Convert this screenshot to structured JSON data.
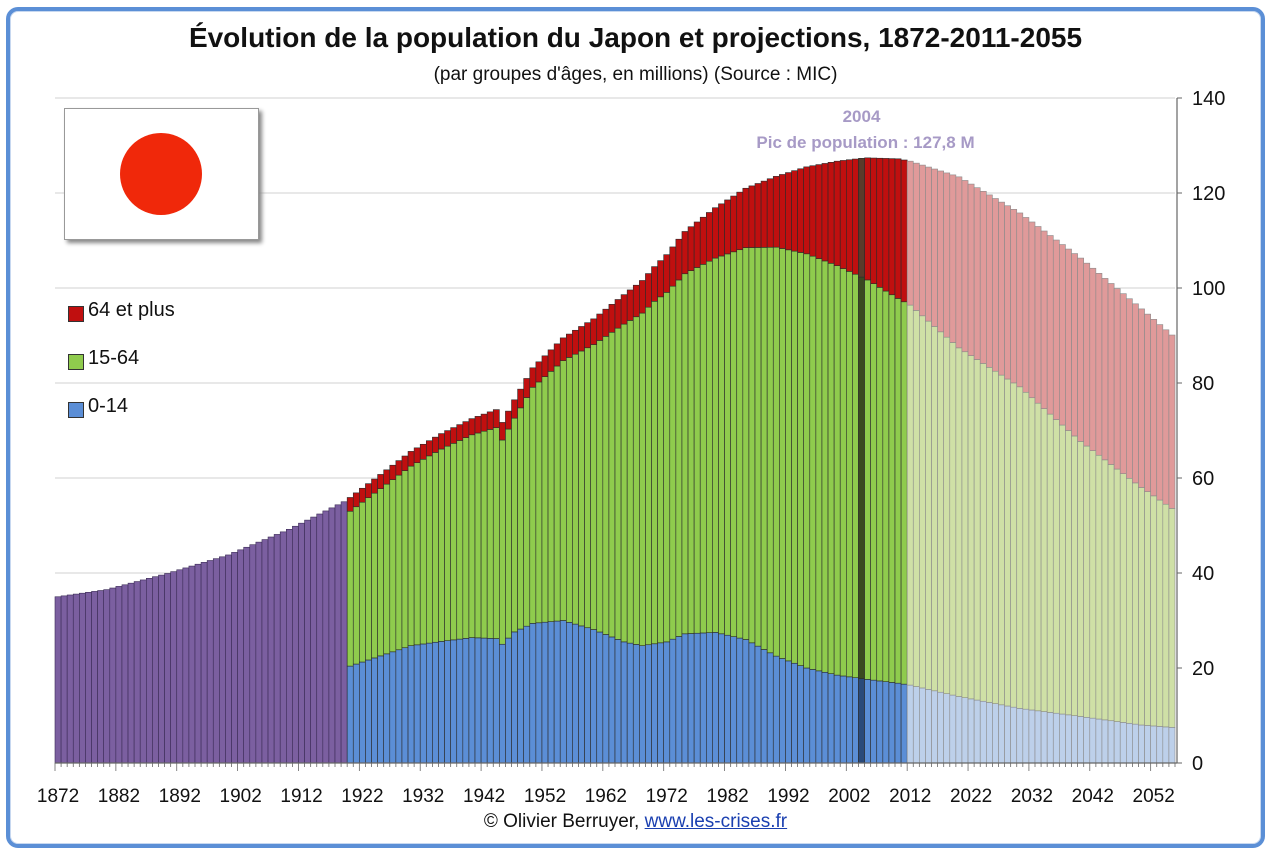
{
  "title": "Évolution de la population du Japon et projections, 1872-2011-2055",
  "subtitle": "(par groupes d'âges, en millions) (Source : MIC)",
  "footer": {
    "copyright": "© Olivier Berruyer,",
    "link": "www.les-crises.fr"
  },
  "annotation": {
    "year": "2004",
    "text": "Pic de population  :  127,8 M"
  },
  "flag_icon": "japan-flag-icon",
  "colors": {
    "total_pre1920": "#7b5fa0",
    "age_0_14": "#5b8ed6",
    "age_15_64": "#8fcb4d",
    "age_65_plus": "#c00f0f",
    "proj_0_14": "#bdd0ea",
    "proj_15_64": "#cfe0a6",
    "proj_65_plus": "#e09a9a",
    "peak_bar": "#5a3a2a",
    "frame": "#5b8fd6"
  },
  "chart_data": {
    "type": "bar",
    "stacked": true,
    "x_start": 1872,
    "x_end": 2055,
    "projection_start": 2012,
    "highlight_year": 2004,
    "x_ticks": [
      1872,
      1882,
      1892,
      1902,
      1912,
      1922,
      1932,
      1942,
      1952,
      1962,
      1972,
      1982,
      1992,
      2002,
      2012,
      2022,
      2032,
      2042,
      2052
    ],
    "y_ticks": [
      0,
      20,
      40,
      60,
      80,
      100,
      120,
      140
    ],
    "ylim": [
      0,
      140
    ],
    "y_axis_side": "right",
    "legend_position": "left",
    "series": [
      {
        "name": "64 et plus",
        "key": "age_65_plus"
      },
      {
        "name": "15-64",
        "key": "age_15_64"
      },
      {
        "name": "0-14",
        "key": "age_0_14"
      }
    ],
    "total_keypoints": [
      [
        1872,
        35.0
      ],
      [
        1880,
        36.5
      ],
      [
        1890,
        39.9
      ],
      [
        1900,
        43.8
      ],
      [
        1910,
        49.2
      ],
      [
        1919,
        55.0
      ]
    ],
    "age_0_14_keypoints": [
      [
        1920,
        20.4
      ],
      [
        1930,
        24.7
      ],
      [
        1935,
        25.6
      ],
      [
        1940,
        26.4
      ],
      [
        1944,
        26.2
      ],
      [
        1945,
        25.0
      ],
      [
        1947,
        27.6
      ],
      [
        1950,
        29.4
      ],
      [
        1955,
        30.0
      ],
      [
        1960,
        28.1
      ],
      [
        1965,
        25.5
      ],
      [
        1968,
        24.7
      ],
      [
        1972,
        25.5
      ],
      [
        1975,
        27.2
      ],
      [
        1980,
        27.5
      ],
      [
        1985,
        26.0
      ],
      [
        1990,
        22.5
      ],
      [
        1995,
        20.0
      ],
      [
        2000,
        18.5
      ],
      [
        2005,
        17.6
      ],
      [
        2010,
        16.8
      ],
      [
        2012,
        16.4
      ],
      [
        2020,
        14.0
      ],
      [
        2030,
        11.5
      ],
      [
        2040,
        9.8
      ],
      [
        2050,
        8.0
      ],
      [
        2055,
        7.5
      ]
    ],
    "age_15_64_keypoints": [
      [
        1920,
        32.6
      ],
      [
        1930,
        37.8
      ],
      [
        1935,
        40.5
      ],
      [
        1940,
        42.7
      ],
      [
        1944,
        44.4
      ],
      [
        1945,
        43.0
      ],
      [
        1947,
        45.0
      ],
      [
        1950,
        49.7
      ],
      [
        1955,
        54.7
      ],
      [
        1960,
        60.0
      ],
      [
        1965,
        66.9
      ],
      [
        1970,
        72.1
      ],
      [
        1975,
        75.8
      ],
      [
        1980,
        78.8
      ],
      [
        1985,
        82.5
      ],
      [
        1990,
        86.1
      ],
      [
        1995,
        87.2
      ],
      [
        2000,
        86.2
      ],
      [
        2005,
        84.1
      ],
      [
        2010,
        81.0
      ],
      [
        2012,
        80.0
      ],
      [
        2020,
        73.4
      ],
      [
        2030,
        67.7
      ],
      [
        2040,
        57.9
      ],
      [
        2050,
        50.0
      ],
      [
        2055,
        46.1
      ]
    ],
    "age_65_plus_keypoints": [
      [
        1920,
        2.9
      ],
      [
        1930,
        3.1
      ],
      [
        1940,
        3.4
      ],
      [
        1944,
        3.8
      ],
      [
        1945,
        3.7
      ],
      [
        1950,
        4.1
      ],
      [
        1955,
        4.8
      ],
      [
        1960,
        5.4
      ],
      [
        1965,
        6.2
      ],
      [
        1970,
        7.3
      ],
      [
        1975,
        8.9
      ],
      [
        1980,
        10.6
      ],
      [
        1985,
        12.5
      ],
      [
        1990,
        14.9
      ],
      [
        1995,
        18.3
      ],
      [
        2000,
        22.0
      ],
      [
        2004,
        25.0
      ],
      [
        2005,
        25.7
      ],
      [
        2010,
        29.4
      ],
      [
        2012,
        30.3
      ],
      [
        2020,
        36.0
      ],
      [
        2030,
        36.6
      ],
      [
        2040,
        38.6
      ],
      [
        2050,
        37.6
      ],
      [
        2055,
        36.5
      ]
    ]
  }
}
